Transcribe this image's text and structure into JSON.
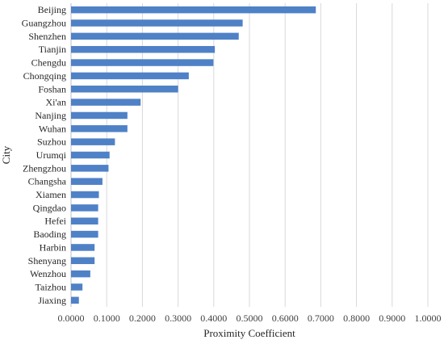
{
  "chart_data": {
    "type": "bar",
    "orientation": "horizontal",
    "xlabel": "Proximity Coefficient",
    "ylabel": "City",
    "xlim": [
      0,
      1
    ],
    "x_ticks": [
      "0.0000",
      "0.1000",
      "0.2000",
      "0.3000",
      "0.4000",
      "0.5000",
      "0.6000",
      "0.7000",
      "0.8000",
      "0.9000",
      "1.0000"
    ],
    "grid": true,
    "bar_color": "#4f81c7",
    "categories": [
      "Beijing",
      "Guangzhou",
      "Shenzhen",
      "Tianjin",
      "Chengdu",
      "Chongqing",
      "Foshan",
      "Xi'an",
      "Nanjing",
      "Wuhan",
      "Suzhou",
      "Urumqi",
      "Zhengzhou",
      "Changsha",
      "Xiamen",
      "Qingdao",
      "Hefei",
      "Baoding",
      "Harbin",
      "Shenyang",
      "Wenzhou",
      "Taizhou",
      "Jiaxing"
    ],
    "values": [
      0.686,
      0.481,
      0.47,
      0.403,
      0.399,
      0.33,
      0.3,
      0.195,
      0.158,
      0.158,
      0.123,
      0.108,
      0.105,
      0.088,
      0.078,
      0.076,
      0.076,
      0.076,
      0.066,
      0.066,
      0.054,
      0.032,
      0.022
    ]
  }
}
